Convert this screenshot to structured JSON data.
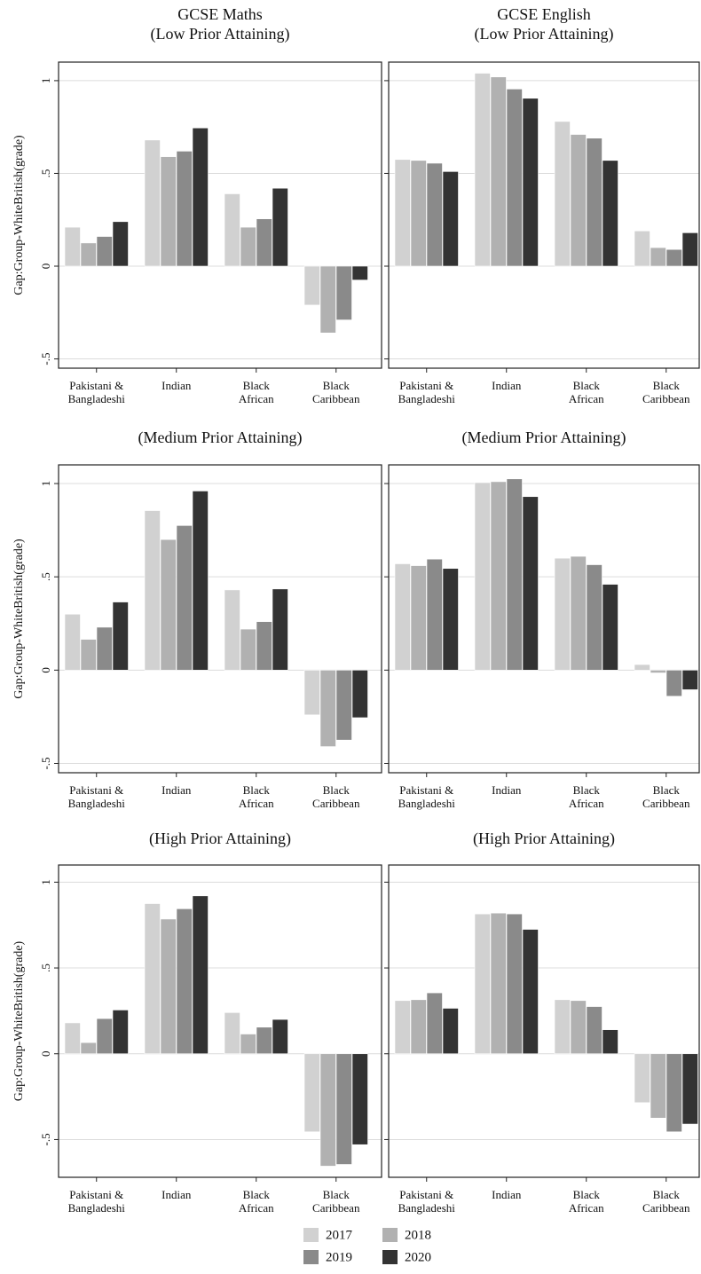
{
  "chart_data": {
    "type": "bar",
    "categories": [
      "Pakistani &\nBangladeshi",
      "Indian",
      "Black\nAfrican",
      "Black\nCaribbean"
    ],
    "series_names": [
      "2017",
      "2018",
      "2019",
      "2020"
    ],
    "colors": [
      "#d1d1d1",
      "#b1b1b1",
      "#8a8a8a",
      "#333333"
    ],
    "ytick_labels": [
      "-.5",
      "0",
      ".5",
      "1"
    ],
    "ytick_values": [
      -0.5,
      0,
      0.5,
      1
    ],
    "legend_placement": "bottom-center",
    "grid": true,
    "panels": [
      {
        "title_lines": [
          "GCSE Maths",
          "(Low Prior Attaining)"
        ],
        "ylabel": "Gap:Group-WhiteBritish(grade)",
        "ylim": [
          -0.55,
          1.1
        ],
        "values": [
          [
            0.21,
            0.125,
            0.16,
            0.24
          ],
          [
            0.68,
            0.59,
            0.62,
            0.745
          ],
          [
            0.39,
            0.21,
            0.255,
            0.42
          ],
          [
            -0.21,
            -0.36,
            -0.29,
            -0.075
          ]
        ]
      },
      {
        "title_lines": [
          "GCSE English",
          "(Low Prior Attaining)"
        ],
        "ylabel": "",
        "ylim": [
          -0.55,
          1.1
        ],
        "values": [
          [
            0.575,
            0.57,
            0.555,
            0.51
          ],
          [
            1.04,
            1.02,
            0.955,
            0.905
          ],
          [
            0.78,
            0.71,
            0.69,
            0.57
          ],
          [
            0.19,
            0.1,
            0.09,
            0.18
          ]
        ]
      },
      {
        "title_lines": [
          "(Medium Prior Attaining)"
        ],
        "ylabel": "Gap:Group-WhiteBritish(grade)",
        "ylim": [
          -0.55,
          1.1
        ],
        "values": [
          [
            0.3,
            0.165,
            0.23,
            0.365
          ],
          [
            0.855,
            0.7,
            0.775,
            0.96
          ],
          [
            0.43,
            0.22,
            0.26,
            0.435
          ],
          [
            -0.24,
            -0.41,
            -0.375,
            -0.255
          ]
        ]
      },
      {
        "title_lines": [
          "(Medium Prior Attaining)"
        ],
        "ylabel": "",
        "ylim": [
          -0.55,
          1.1
        ],
        "values": [
          [
            0.57,
            0.56,
            0.595,
            0.545
          ],
          [
            1.005,
            1.01,
            1.025,
            0.93
          ],
          [
            0.6,
            0.61,
            0.565,
            0.46
          ],
          [
            0.03,
            -0.015,
            -0.14,
            -0.105
          ]
        ]
      },
      {
        "title_lines": [
          "(High Prior Attaining)"
        ],
        "ylabel": "Gap:Group-WhiteBritish(grade)",
        "ylim": [
          -0.72,
          1.1
        ],
        "values": [
          [
            0.18,
            0.065,
            0.205,
            0.255
          ],
          [
            0.875,
            0.785,
            0.845,
            0.92
          ],
          [
            0.24,
            0.115,
            0.155,
            0.2
          ],
          [
            -0.455,
            -0.655,
            -0.645,
            -0.53
          ]
        ]
      },
      {
        "title_lines": [
          "(High Prior Attaining)"
        ],
        "ylabel": "",
        "ylim": [
          -0.72,
          1.1
        ],
        "values": [
          [
            0.31,
            0.315,
            0.355,
            0.265
          ],
          [
            0.815,
            0.82,
            0.815,
            0.725
          ],
          [
            0.315,
            0.31,
            0.275,
            0.14
          ],
          [
            -0.285,
            -0.375,
            -0.455,
            -0.41
          ]
        ]
      }
    ]
  }
}
